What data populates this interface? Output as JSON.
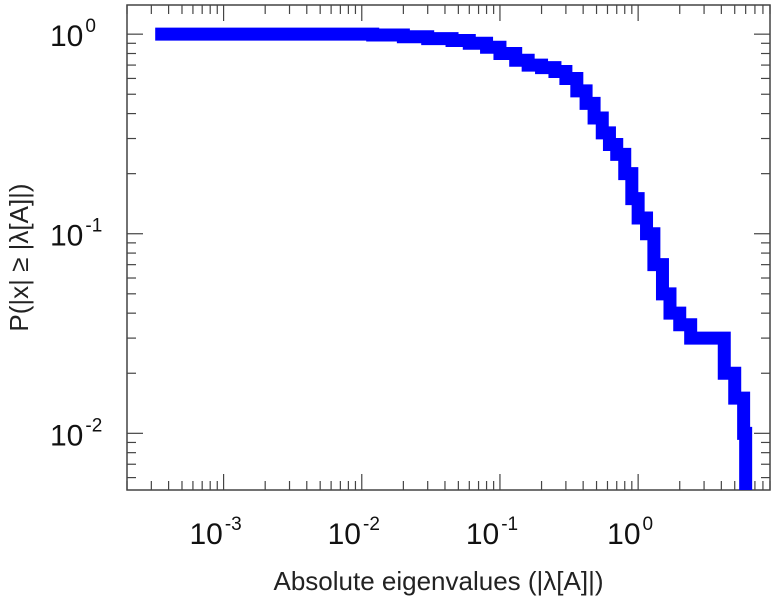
{
  "chart_data": {
    "type": "line",
    "step": true,
    "xlabel": "Absolute eigenvalues (|λ[A]|)",
    "ylabel": "P(|x| ≥ |λ[A]|)",
    "xscale": "log",
    "yscale": "log",
    "xlim": [
      0.0002,
      9
    ],
    "ylim": [
      0.0052,
      1.4
    ],
    "grid": false,
    "series_color": "#0000ff",
    "xticks": [
      {
        "base": "10",
        "exp": "-3",
        "value": 0.001
      },
      {
        "base": "10",
        "exp": "-2",
        "value": 0.01
      },
      {
        "base": "10",
        "exp": "-1",
        "value": 0.1
      },
      {
        "base": "10",
        "exp": "0",
        "value": 1
      }
    ],
    "yticks": [
      {
        "base": "10",
        "exp": "-2",
        "value": 0.01
      },
      {
        "base": "10",
        "exp": "-1",
        "value": 0.1
      },
      {
        "base": "10",
        "exp": "0",
        "value": 1
      }
    ],
    "series": [
      {
        "x": [
          0.00032,
          0.005,
          0.012,
          0.02,
          0.03,
          0.045,
          0.06,
          0.08,
          0.1,
          0.13,
          0.16,
          0.2,
          0.25,
          0.3,
          0.36,
          0.42,
          0.48,
          0.55,
          0.62,
          0.7,
          0.8,
          0.9,
          1.0,
          1.15,
          1.3,
          1.5,
          1.7,
          2.0,
          2.4,
          3.0,
          3.6,
          4.2,
          5.0,
          5.8,
          6.0
        ],
        "y": [
          1.0,
          1.0,
          0.99,
          0.97,
          0.95,
          0.93,
          0.9,
          0.86,
          0.8,
          0.74,
          0.7,
          0.68,
          0.65,
          0.6,
          0.52,
          0.45,
          0.38,
          0.32,
          0.28,
          0.25,
          0.2,
          0.15,
          0.12,
          0.1,
          0.07,
          0.05,
          0.04,
          0.035,
          0.03,
          0.03,
          0.03,
          0.02,
          0.015,
          0.01,
          0.0052
        ]
      }
    ]
  }
}
